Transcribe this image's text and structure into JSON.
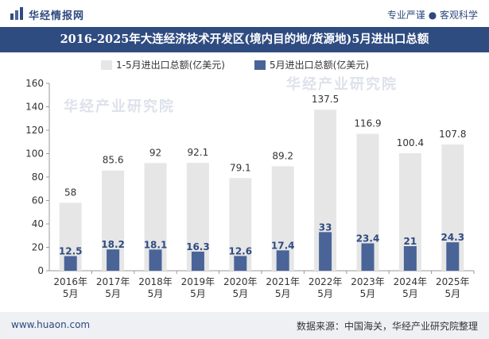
{
  "header": {
    "brand": "华经情报网",
    "tagline": "专业严谨 ● 客观科学"
  },
  "watermarks": [
    "华经产业研究院",
    "华经产业研究院"
  ],
  "chart_data": {
    "type": "bar",
    "title": "2016-2025年大连经济技术开发区(境内目的地/货源地)5月进出口总额",
    "xlabel": "",
    "ylabel": "",
    "categories": [
      "2016年\n5月",
      "2017年\n5月",
      "2018年\n5月",
      "2019年\n5月",
      "2020年\n5月",
      "2021年\n5月",
      "2022年\n5月",
      "2023年\n5月",
      "2024年\n5月",
      "2025年\n5月"
    ],
    "series": [
      {
        "name": "1-5月进出口总额(亿美元)",
        "color": "#e6e6e6",
        "values": [
          58,
          85.6,
          92,
          92.1,
          79.1,
          89.2,
          137.5,
          116.9,
          100.4,
          107.8
        ]
      },
      {
        "name": "5月进出口总额(亿美元)",
        "color": "#4a6498",
        "values": [
          12.5,
          18.2,
          18.1,
          16.3,
          12.6,
          17.4,
          33,
          23.4,
          21,
          24.3
        ]
      }
    ],
    "ylim": [
      0,
      160
    ],
    "yticks": [
      0,
      20,
      40,
      60,
      80,
      100,
      120,
      140,
      160
    ],
    "grid": false,
    "legend": "top"
  },
  "footer": {
    "site": "www.huaon.com",
    "source": "数据来源：中国海关，华经产业研究院整理"
  }
}
